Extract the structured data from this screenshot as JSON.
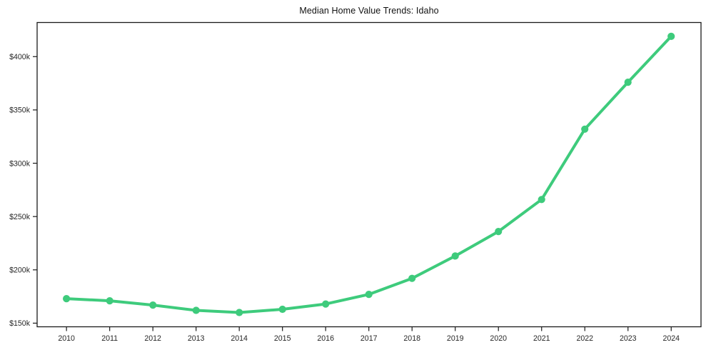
{
  "window": {
    "title": "Median Home Value Trends: Idaho"
  },
  "chart_data": {
    "type": "line",
    "title": "Median Home Value Trends: Idaho",
    "xlabel": "",
    "ylabel": "",
    "unit": "USD thousands",
    "x": [
      2010,
      2011,
      2012,
      2013,
      2014,
      2015,
      2016,
      2017,
      2018,
      2019,
      2020,
      2021,
      2022,
      2023,
      2024
    ],
    "xtick_labels": [
      "2010",
      "2011",
      "2012",
      "2013",
      "2014",
      "2015",
      "2016",
      "2017",
      "2018",
      "2019",
      "2020",
      "2021",
      "2022",
      "2023",
      "2024"
    ],
    "series": [
      {
        "name": "Median home value",
        "values": [
          173,
          171,
          167,
          162,
          160,
          163,
          168,
          177,
          192,
          213,
          236,
          266,
          332,
          376,
          419
        ]
      }
    ],
    "yticks": [
      150,
      200,
      250,
      300,
      350,
      400
    ],
    "ytick_labels": [
      "$150k",
      "$200k",
      "$250k",
      "$300k",
      "$350k",
      "$400k"
    ],
    "xlim": [
      2009.32,
      2024.69
    ],
    "ylim": [
      146.6,
      432.0
    ],
    "grid": false,
    "legend": null,
    "line_color": "#3ecb7c",
    "axis_color": "#1a1a1a",
    "text_color": "#262626",
    "background_color": "#ffffff",
    "marker": "circle"
  }
}
